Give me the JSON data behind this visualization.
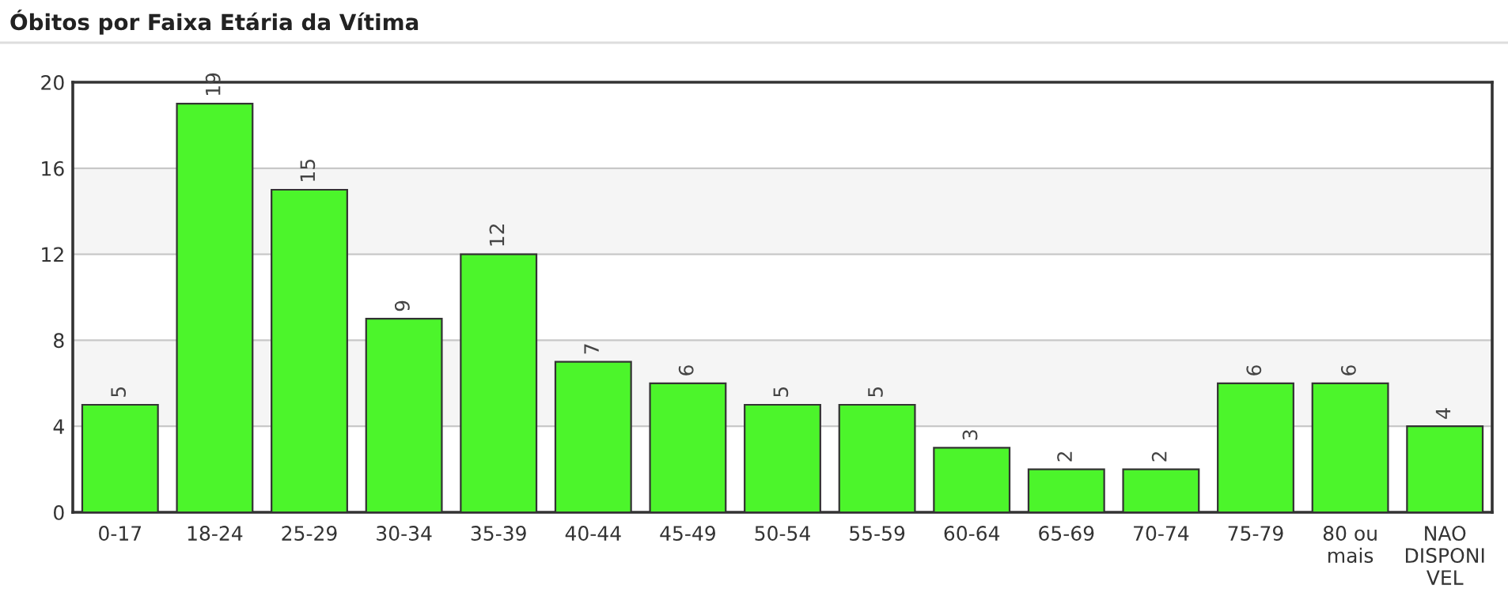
{
  "chart_data": {
    "type": "bar",
    "title": "Óbitos por Faixa Etária da Vítima",
    "categories": [
      "0-17",
      "18-24",
      "25-29",
      "30-34",
      "35-39",
      "40-44",
      "45-49",
      "50-54",
      "55-59",
      "60-64",
      "65-69",
      "70-74",
      "75-79",
      "80 ou\nmais",
      "NAO\nDISPONI\nVEL"
    ],
    "values": [
      5,
      19,
      15,
      9,
      12,
      7,
      6,
      5,
      5,
      3,
      2,
      2,
      6,
      6,
      4
    ],
    "color": "#4cf52b",
    "ylim": [
      0,
      20
    ],
    "yticks": [
      0,
      4,
      8,
      12,
      16,
      20
    ],
    "grid": "y",
    "data_labels": true,
    "bands": [
      {
        "axis": "y",
        "from": 4,
        "to": 8,
        "color": "#f5f5f5"
      },
      {
        "axis": "y",
        "from": 12,
        "to": 16,
        "color": "#f5f5f5"
      }
    ]
  }
}
